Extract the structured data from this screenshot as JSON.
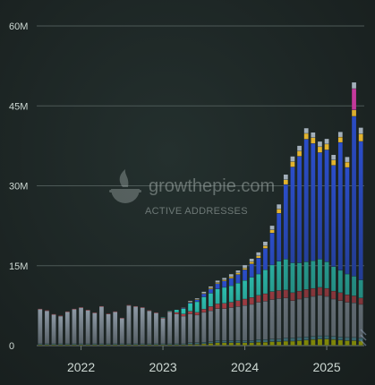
{
  "chart_data": {
    "type": "bar",
    "stacked": true,
    "ylim": [
      0,
      60
    ],
    "y_unit": "M",
    "yticks": [
      {
        "value": 0,
        "label": "0"
      },
      {
        "value": 15,
        "label": "15M"
      },
      {
        "value": 30,
        "label": "30M"
      },
      {
        "value": 45,
        "label": "45M"
      },
      {
        "value": 60,
        "label": "60M"
      }
    ],
    "xticks": [
      "2022",
      "2023",
      "2024",
      "2025"
    ],
    "grid": true,
    "x": [
      "2021-07-01",
      "2021-08-01",
      "2021-09-01",
      "2021-10-01",
      "2021-11-01",
      "2021-12-01",
      "2022-01-01",
      "2022-02-01",
      "2022-03-01",
      "2022-04-01",
      "2022-05-01",
      "2022-06-01",
      "2022-07-01",
      "2022-08-01",
      "2022-09-01",
      "2022-10-01",
      "2022-11-01",
      "2022-12-01",
      "2023-01-01",
      "2023-02-01",
      "2023-03-01",
      "2023-04-01",
      "2023-05-01",
      "2023-06-01",
      "2023-07-01",
      "2023-08-01",
      "2023-09-01",
      "2023-10-01",
      "2023-11-01",
      "2023-12-01",
      "2024-01-01",
      "2024-02-01",
      "2024-03-01",
      "2024-04-01",
      "2024-05-01",
      "2024-06-01",
      "2024-07-01",
      "2024-08-01",
      "2024-09-01",
      "2024-10-01",
      "2024-11-01",
      "2024-12-01",
      "2025-01-01",
      "2025-02-01",
      "2025-03-01",
      "2025-04-01",
      "2025-05-01",
      "2025-06-01"
    ],
    "series": [
      {
        "color": "#d7e000",
        "values": [
          0.1,
          0.1,
          0.1,
          0.1,
          0.1,
          0.1,
          0.1,
          0.1,
          0.1,
          0.1,
          0.1,
          0.1,
          0.1,
          0.1,
          0.1,
          0.1,
          0.1,
          0.1,
          0.1,
          0.1,
          0.1,
          0.1,
          0.2,
          0.2,
          0.3,
          0.4,
          0.5,
          0.5,
          0.5,
          0.5,
          0.5,
          0.5,
          0.6,
          0.6,
          0.7,
          0.7,
          0.8,
          0.8,
          0.9,
          1.0,
          1.1,
          1.2,
          1.2,
          1.1,
          1.0,
          0.9,
          0.9,
          0.8
        ]
      },
      {
        "color": "#5fa8b8",
        "values": [
          0.2,
          0.2,
          0.2,
          0.2,
          0.2,
          0.2,
          0.2,
          0.2,
          0.2,
          0.2,
          0.2,
          0.2,
          0.2,
          0.2,
          0.2,
          0.2,
          0.2,
          0.2,
          0.2,
          0.2,
          0.2,
          0.2,
          0.3,
          0.3,
          0.3,
          0.3,
          0.4,
          0.4,
          0.4,
          0.4,
          0.4,
          0.4,
          0.5,
          0.5,
          0.5,
          0.5,
          0.6,
          0.6,
          0.6,
          0.6,
          0.6,
          0.6,
          0.6,
          0.6,
          0.6,
          0.6,
          0.6,
          0.6
        ]
      },
      {
        "color": "#8e9aa6",
        "values": [
          6.5,
          6.2,
          5.5,
          5.2,
          6.0,
          6.5,
          6.8,
          6.3,
          5.8,
          7.0,
          5.6,
          6.0,
          4.8,
          7.2,
          7.0,
          6.8,
          6.2,
          5.8,
          4.8,
          6.0,
          5.6,
          5.2,
          5.4,
          5.2,
          5.6,
          5.8,
          6.0,
          6.0,
          6.2,
          6.4,
          6.6,
          6.8,
          7.0,
          7.2,
          7.4,
          7.6,
          7.5,
          7.0,
          7.2,
          7.4,
          7.5,
          7.6,
          7.4,
          7.0,
          6.8,
          6.6,
          6.5,
          6.3
        ]
      },
      {
        "color": "#c0464e",
        "values": [
          0.1,
          0.1,
          0.1,
          0.1,
          0.1,
          0.1,
          0.1,
          0.1,
          0.1,
          0.1,
          0.1,
          0.1,
          0.1,
          0.1,
          0.1,
          0.1,
          0.1,
          0.1,
          0.1,
          0.1,
          0.3,
          0.4,
          0.5,
          0.5,
          0.6,
          0.8,
          0.9,
          1.0,
          1.0,
          1.1,
          1.2,
          1.3,
          1.3,
          1.4,
          1.5,
          1.5,
          1.5,
          1.5,
          1.5,
          1.5,
          1.5,
          1.5,
          1.5,
          1.5,
          1.5,
          1.4,
          1.3,
          1.2
        ]
      },
      {
        "color": "#2ec7b7",
        "values": [
          0,
          0,
          0,
          0,
          0,
          0,
          0,
          0,
          0,
          0,
          0,
          0,
          0,
          0,
          0,
          0,
          0,
          0,
          0.1,
          0.1,
          0.5,
          1.0,
          1.5,
          2.0,
          2.3,
          2.5,
          2.8,
          3.0,
          3.1,
          3.3,
          3.5,
          3.8,
          4.0,
          4.5,
          5.0,
          5.5,
          5.8,
          5.6,
          5.3,
          5.2,
          5.2,
          5.3,
          5.0,
          4.6,
          4.2,
          3.9,
          3.7,
          3.4
        ]
      },
      {
        "color": "#2c4fce",
        "values": [
          0,
          0,
          0,
          0,
          0,
          0,
          0,
          0,
          0,
          0,
          0,
          0,
          0,
          0,
          0,
          0,
          0,
          0,
          0,
          0,
          0,
          0.1,
          0.2,
          0.4,
          0.6,
          0.8,
          1.0,
          1.2,
          1.4,
          1.6,
          2.0,
          2.5,
          3.0,
          4.0,
          6.0,
          9.0,
          14.0,
          18.0,
          20.0,
          23.0,
          22.0,
          20.0,
          21.0,
          19.0,
          24.0,
          20.0,
          30.0,
          26.0
        ]
      },
      {
        "color": "#e6b62f",
        "values": [
          0,
          0,
          0,
          0,
          0,
          0,
          0,
          0,
          0,
          0,
          0,
          0,
          0,
          0,
          0,
          0,
          0,
          0,
          0,
          0,
          0,
          0,
          0.1,
          0.1,
          0.1,
          0.2,
          0.2,
          0.2,
          0.3,
          0.3,
          0.3,
          0.4,
          0.4,
          0.5,
          0.6,
          0.8,
          0.9,
          1.0,
          1.0,
          1.1,
          1.1,
          1.1,
          1.1,
          1.0,
          1.0,
          1.0,
          1.2,
          1.4
        ]
      },
      {
        "color": "#c93a9e",
        "values": [
          0,
          0,
          0,
          0,
          0,
          0,
          0,
          0,
          0,
          0,
          0,
          0,
          0,
          0,
          0,
          0,
          0,
          0,
          0,
          0,
          0,
          0,
          0,
          0,
          0,
          0,
          0,
          0,
          0,
          0,
          0,
          0,
          0,
          0,
          0,
          0,
          0,
          0,
          0,
          0,
          0,
          0,
          0,
          0,
          0,
          0,
          4.0,
          0
        ]
      },
      {
        "color": "#a4b0bb",
        "values": [
          0,
          0,
          0,
          0,
          0,
          0,
          0,
          0,
          0,
          0,
          0,
          0,
          0,
          0,
          0,
          0,
          0,
          0,
          0,
          0,
          0,
          0.1,
          0.2,
          0.2,
          0.3,
          0.3,
          0.4,
          0.4,
          0.5,
          0.5,
          0.6,
          0.6,
          0.7,
          0.8,
          0.8,
          0.9,
          1.0,
          1.0,
          1.0,
          1.0,
          1.0,
          1.0,
          1.0,
          1.0,
          1.0,
          1.0,
          1.2,
          1.2
        ]
      }
    ]
  },
  "watermark": {
    "brand": "growthepie.com",
    "subtitle": "ACTIVE ADDRESSES"
  },
  "colors": {
    "grid": "#4d5957",
    "axis": "#6f7b78",
    "bar_base_fade": "#101615"
  }
}
